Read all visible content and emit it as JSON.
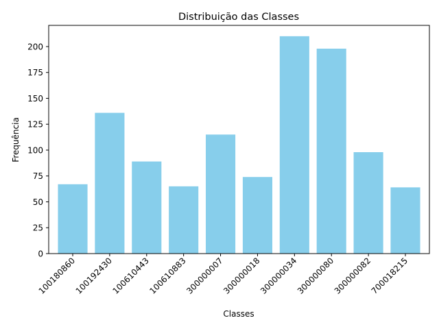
{
  "chart_data": {
    "type": "bar",
    "title": "Distribuição das Classes",
    "xlabel": "Classes",
    "ylabel": "Frequência",
    "categories": [
      "100180860",
      "100192430",
      "100610443",
      "100610883",
      "300000007",
      "300000018",
      "300000034",
      "300000080",
      "300000082",
      "700018215"
    ],
    "values": [
      67,
      136,
      89,
      65,
      115,
      74,
      210,
      198,
      98,
      64
    ],
    "ylim": [
      0,
      220.5
    ],
    "yticks": [
      0,
      25,
      50,
      75,
      100,
      125,
      150,
      175,
      200
    ],
    "bar_color": "#87ceeb",
    "grid": false
  }
}
